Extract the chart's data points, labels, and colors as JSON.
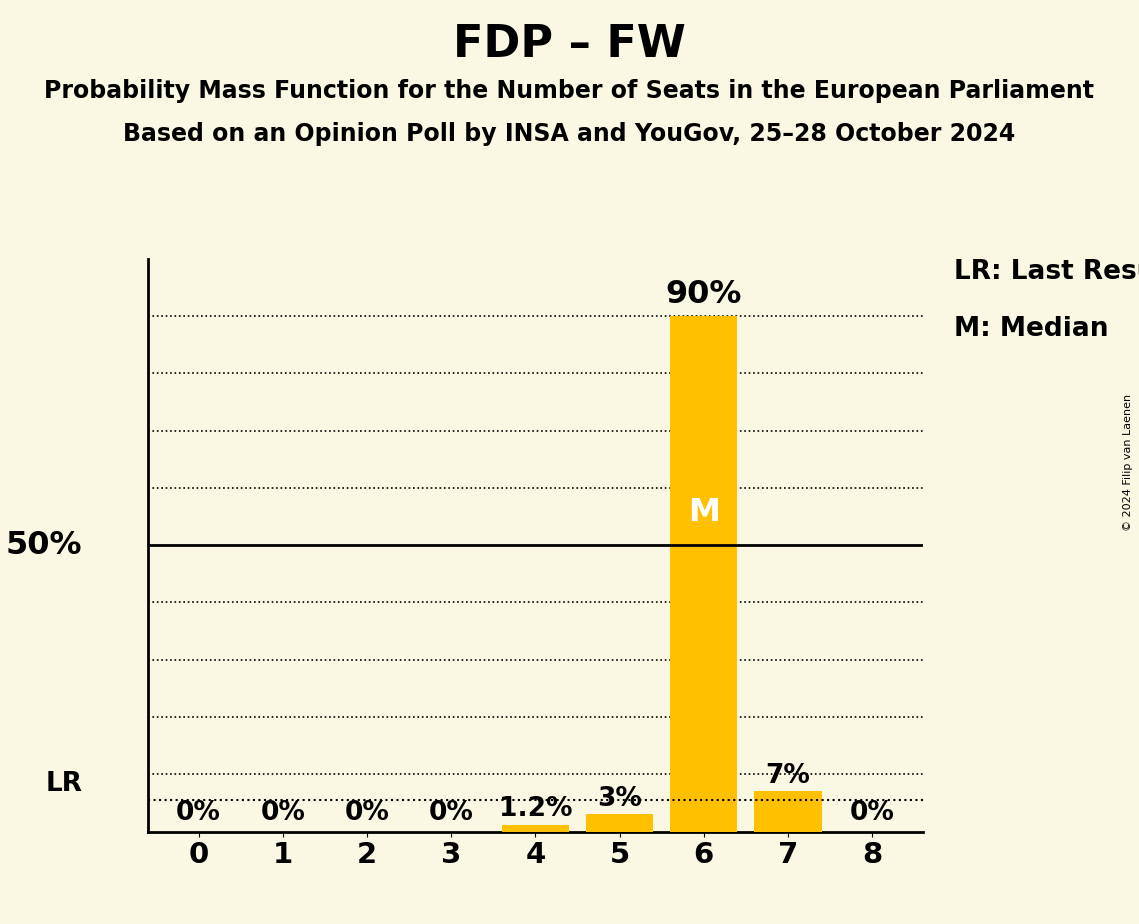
{
  "title": "FDP – FW",
  "subtitle1": "Probability Mass Function for the Number of Seats in the European Parliament",
  "subtitle2": "Based on an Opinion Poll by INSA and YouGov, 25–28 October 2024",
  "copyright": "© 2024 Filip van Laenen",
  "categories": [
    0,
    1,
    2,
    3,
    4,
    5,
    6,
    7,
    8
  ],
  "values": [
    0.0,
    0.0,
    0.0,
    0.0,
    1.2,
    3.0,
    90.0,
    7.0,
    0.0
  ],
  "value_labels": [
    "0%",
    "0%",
    "0%",
    "0%",
    "1.2%",
    "3%",
    "90%",
    "7%",
    "0%"
  ],
  "bar_color": "#FFC000",
  "background_color": "#FAF8E3",
  "median_seat": 6,
  "last_result_seat": 0,
  "fifty_pct_line": 50.0,
  "lr_line_value": 5.5,
  "legend_lr": "LR: Last Result",
  "legend_m": "M: Median",
  "ylim": [
    0,
    100
  ],
  "dotted_lines": [
    10,
    20,
    30,
    40,
    60,
    70,
    80,
    90
  ],
  "solid_line": 50,
  "title_fontsize": 32,
  "subtitle_fontsize": 17,
  "tick_fontsize": 21,
  "label_fontsize": 19,
  "axis_label_fontsize": 23,
  "legend_fontsize": 19
}
